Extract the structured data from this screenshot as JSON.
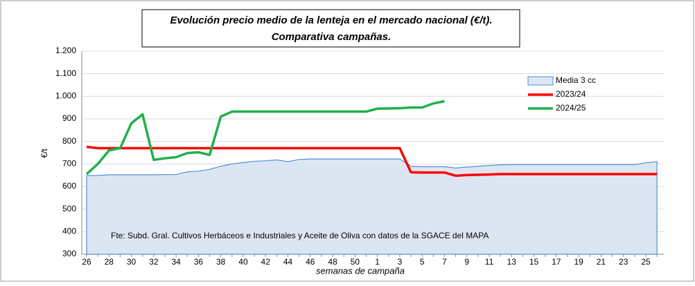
{
  "chart_data": {
    "type": "line",
    "title": "Evolución precio medio de la lenteja en el mercado nacional (€/t).",
    "subtitle": "Comparativa campañas.",
    "x_label": "semanas de campaña",
    "y_label": "€/t",
    "annotation": "Fte: Subd. Gral. Cultivos Herbáceos e Industriales y Aceite de Oliva con datos de la SGACE del MAPA",
    "categories": [
      "26",
      null,
      "28",
      null,
      "30",
      null,
      "32",
      null,
      "34",
      null,
      "36",
      null,
      "38",
      null,
      "40",
      null,
      "42",
      null,
      "44",
      null,
      "46",
      null,
      "48",
      null,
      "50",
      null,
      "1",
      null,
      "3",
      null,
      "5",
      null,
      "7",
      null,
      "9",
      null,
      "11",
      null,
      "13",
      null,
      "15",
      null,
      "17",
      null,
      "19",
      null,
      "21",
      null,
      "23",
      null,
      "25",
      null
    ],
    "ylim": [
      300,
      1200
    ],
    "yticks": [
      300,
      400,
      500,
      600,
      700,
      800,
      900,
      {
        "value": 1000,
        "label": "1.000"
      },
      {
        "value": 1100,
        "label": "1.100"
      },
      {
        "value": 1200,
        "label": "1.200"
      }
    ],
    "legend": "upper right",
    "series": [
      {
        "name": "Media 3 cc",
        "kind": "area",
        "color": "#dce6f2",
        "values": [
          648,
          649,
          652,
          652,
          652,
          652,
          652,
          653,
          653,
          665,
          668,
          676,
          690,
          700,
          706,
          712,
          714,
          718,
          710,
          720,
          722,
          722,
          722,
          722,
          722,
          722,
          722,
          722,
          722,
          690,
          688,
          688,
          688,
          682,
          686,
          690,
          693,
          696,
          697,
          697,
          697,
          697,
          697,
          697,
          697,
          697,
          697,
          697,
          697,
          697,
          705,
          710
        ]
      },
      {
        "name": "2023/24",
        "color": "#ff0000",
        "values": [
          776,
          770,
          770,
          770,
          770,
          770,
          770,
          770,
          770,
          770,
          770,
          770,
          770,
          770,
          770,
          770,
          770,
          770,
          770,
          770,
          770,
          770,
          770,
          770,
          770,
          770,
          770,
          770,
          770,
          663,
          662,
          662,
          662,
          648,
          651,
          652,
          653,
          655,
          655,
          655,
          655,
          655,
          655,
          655,
          655,
          655,
          655,
          655,
          655,
          655,
          655,
          655
        ]
      },
      {
        "name": "2024/25",
        "color": "#1fb04a",
        "values": [
          655,
          700,
          760,
          770,
          880,
          920,
          718,
          725,
          730,
          748,
          752,
          740,
          910,
          932,
          932,
          932,
          932,
          932,
          932,
          932,
          932,
          932,
          932,
          932,
          932,
          932,
          945,
          946,
          947,
          950,
          950,
          968,
          978,
          null,
          null,
          null,
          null,
          null,
          null,
          null,
          null,
          null,
          null,
          null,
          null,
          null,
          null,
          null,
          null,
          null,
          null,
          null
        ]
      }
    ]
  }
}
